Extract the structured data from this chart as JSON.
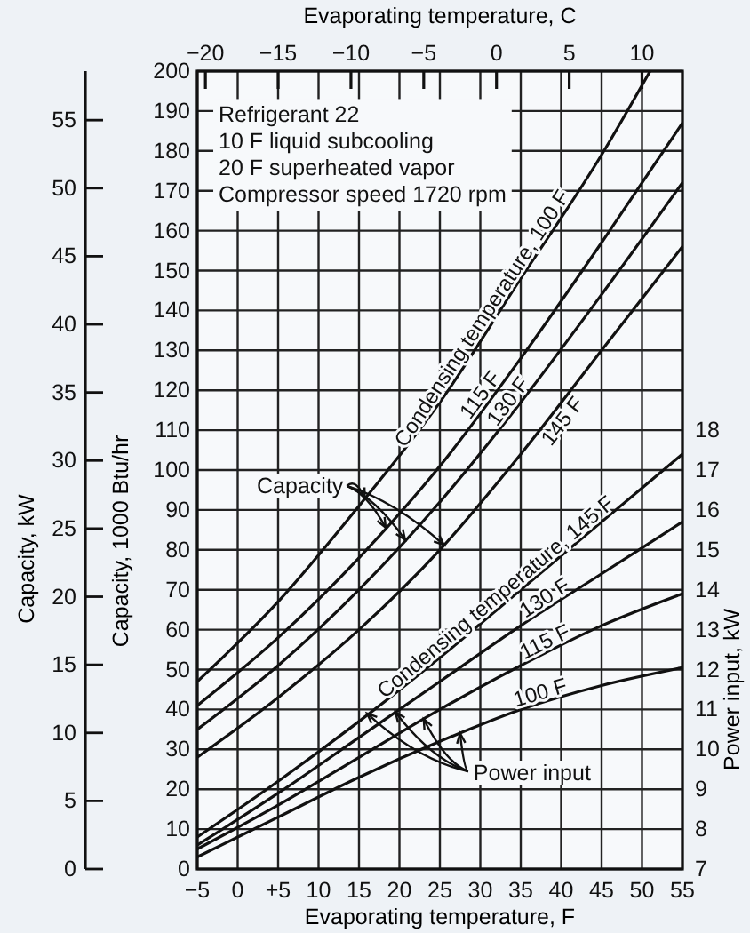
{
  "chart_data": {
    "type": "line",
    "xlabel": "Evaporating temperature, F",
    "x2label": "Evaporating temperature, C",
    "ylabel": "Capacity, 1000 Btu/hr",
    "y2label": "Power input, kW",
    "y3label": "Capacity, kW",
    "xlim": [
      -5,
      55
    ],
    "xticks": [
      {
        "value": -5,
        "label": "−5"
      },
      0,
      {
        "value": 5,
        "label": "+5"
      },
      10,
      15,
      20,
      25,
      30,
      35,
      40,
      45,
      50,
      55
    ],
    "x2lim": [
      -20.56,
      12.78
    ],
    "x2ticks": [
      {
        "value": -20,
        "label": "−20"
      },
      {
        "value": -15,
        "label": "−15"
      },
      {
        "value": -10,
        "label": "−10"
      },
      {
        "value": -5,
        "label": "−5"
      },
      0,
      5,
      10
    ],
    "ylim": [
      0,
      200
    ],
    "yticks": [
      0,
      10,
      20,
      30,
      40,
      50,
      60,
      70,
      80,
      90,
      100,
      110,
      120,
      130,
      140,
      150,
      160,
      170,
      180,
      190,
      200
    ],
    "y2lim": [
      7,
      27
    ],
    "y2ticks": [
      7,
      8,
      9,
      10,
      11,
      12,
      13,
      14,
      15,
      16,
      17,
      18
    ],
    "y3lim": [
      0,
      58.6
    ],
    "y3ticks": [
      0,
      5,
      10,
      15,
      20,
      25,
      30,
      35,
      40,
      45,
      50,
      55
    ],
    "grid": true,
    "line_style": "solid",
    "marker": "none",
    "series": [
      {
        "name": "Condensing temperature, 100 F",
        "color": "#111111",
        "x": [
          -5,
          5,
          15,
          25,
          35,
          45,
          51
        ],
        "values": [
          47,
          67,
          91,
          117,
          148,
          179,
          200
        ]
      },
      {
        "name": "115 F",
        "color": "#111111",
        "x": [
          -5,
          5,
          15,
          25,
          35,
          45,
          55
        ],
        "values": [
          41,
          58,
          78,
          101,
          128,
          157,
          187
        ]
      },
      {
        "name": "130 F",
        "color": "#111111",
        "x": [
          -5,
          5,
          15,
          25,
          35,
          45,
          55
        ],
        "values": [
          35,
          51,
          70,
          92,
          117,
          144,
          172
        ]
      },
      {
        "name": "145 F",
        "color": "#111111",
        "x": [
          -5,
          5,
          15,
          25,
          35,
          45,
          55
        ],
        "values": [
          28,
          43,
          60,
          80,
          104,
          130,
          156
        ]
      },
      {
        "name": "Condensing temperature, 145 F",
        "color": "#111111",
        "axis": "y2",
        "x": [
          -5,
          5,
          15,
          25,
          35,
          45,
          55
        ],
        "values": [
          7.8,
          9.2,
          10.7,
          12.3,
          14.0,
          15.7,
          17.4
        ]
      },
      {
        "name": "130 F",
        "color": "#111111",
        "axis": "y2",
        "x": [
          -5,
          5,
          15,
          25,
          35,
          45,
          55
        ],
        "values": [
          7.6,
          8.9,
          10.3,
          11.7,
          13.1,
          14.4,
          15.7
        ]
      },
      {
        "name": "115 F",
        "color": "#111111",
        "axis": "y2",
        "x": [
          -5,
          5,
          15,
          25,
          35,
          45,
          55
        ],
        "values": [
          7.5,
          8.6,
          9.8,
          11.0,
          12.1,
          13.1,
          13.9
        ]
      },
      {
        "name": "100 F",
        "color": "#111111",
        "axis": "y2",
        "x": [
          -5,
          5,
          15,
          25,
          35,
          45,
          55
        ],
        "values": [
          7.3,
          8.3,
          9.3,
          10.2,
          11.0,
          11.6,
          12.05
        ]
      }
    ],
    "annotations": [
      "Refrigerant 22",
      "10 F liquid subcooling",
      "20 F superheated vapor",
      "Compressor speed 1720 rpm",
      {
        "text": "Capacity",
        "x": 15.7,
        "y": 93
      },
      {
        "text": "Power input",
        "x": 16,
        "y": 39
      }
    ]
  }
}
